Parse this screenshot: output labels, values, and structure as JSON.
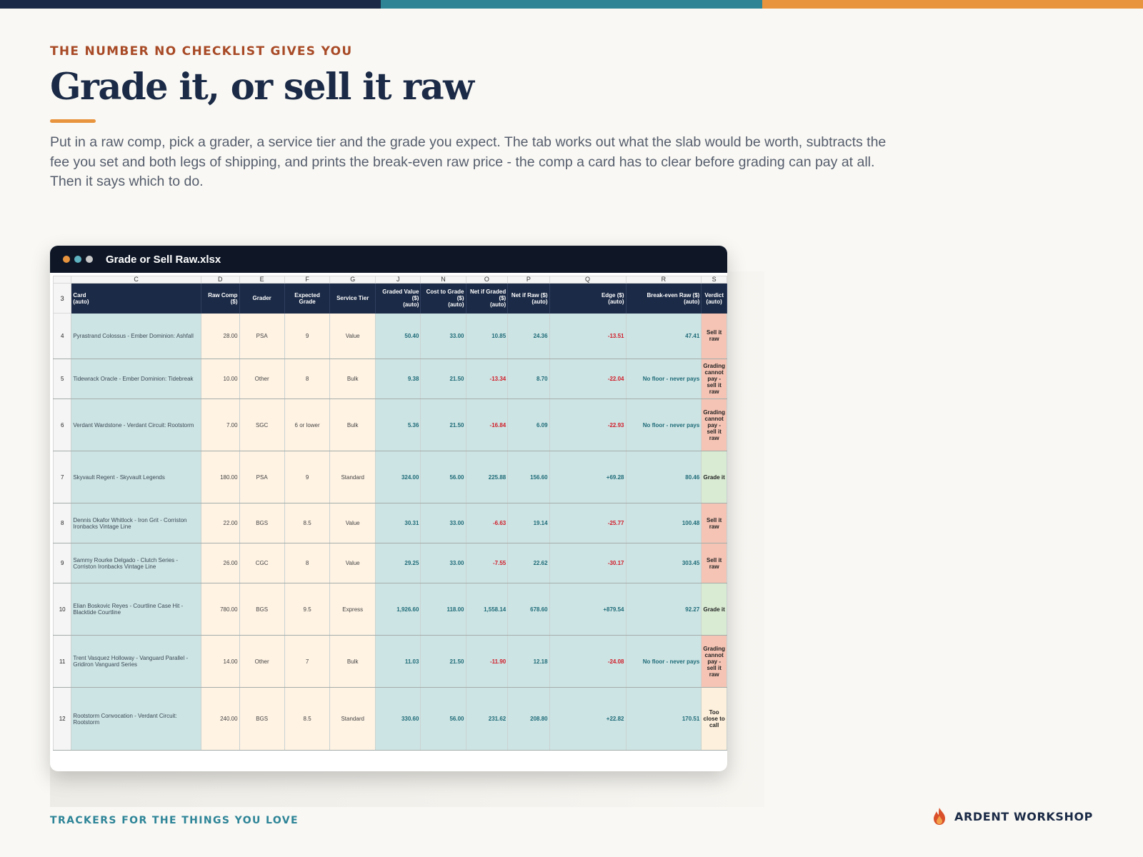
{
  "colors": {
    "bar_navy": "#1b2a46",
    "bar_teal": "#2e8495",
    "bar_orange": "#e8943e",
    "dot_orange": "#e8943e",
    "dot_teal": "#5fb3c1",
    "dot_gray": "#c9c9c9"
  },
  "hero": {
    "eyebrow": "THE NUMBER NO CHECKLIST GIVES YOU",
    "title": "Grade it, or sell it raw",
    "lede": "Put in a raw comp, pick a grader, a service tier and the grade you expect. The tab works out what the slab would be worth, subtracts the fee you set and both legs of shipping, and prints the break-even raw price - the comp a card has to clear before grading can pay at all. Then it says which to do."
  },
  "window": {
    "title": "Grade or Sell Raw.xlsx",
    "icon": "traffic-light-dots"
  },
  "sheet": {
    "column_letters": [
      "C",
      "D",
      "E",
      "F",
      "G",
      "J",
      "N",
      "O",
      "P",
      "Q",
      "R",
      "S"
    ],
    "header_row_number": "3",
    "headers": [
      "Card\n(auto)",
      "Raw Comp ($)",
      "Grader",
      "Expected Grade",
      "Service Tier",
      "Graded Value ($)\n(auto)",
      "Cost to Grade ($)\n(auto)",
      "Net if Graded ($)\n(auto)",
      "Net if Raw ($)\n(auto)",
      "Edge ($)\n(auto)",
      "Break-even Raw ($)\n(auto)",
      "Verdict\n(auto)"
    ],
    "rows": [
      {
        "n": "4",
        "card": "Pyrastrand Colossus  -  Ember Dominion: Ashfall",
        "raw": "28.00",
        "grader": "PSA",
        "grade": "9",
        "tier": "Value",
        "graded": "50.40",
        "cost": "33.00",
        "net_graded": "10.85",
        "net_raw": "24.36",
        "edge": "-13.51",
        "breakeven": "47.41",
        "verdict": "Sell it raw"
      },
      {
        "n": "5",
        "card": "Tidewrack Oracle  -  Ember Dominion: Tidebreak",
        "raw": "10.00",
        "grader": "Other",
        "grade": "8",
        "tier": "Bulk",
        "graded": "9.38",
        "cost": "21.50",
        "net_graded": "-13.34",
        "net_raw": "8.70",
        "edge": "-22.04",
        "breakeven": "No floor - never pays",
        "verdict": "Grading cannot pay - sell it raw"
      },
      {
        "n": "6",
        "card": "Verdant Wardstone  -  Verdant Circuit: Rootstorm",
        "raw": "7.00",
        "grader": "SGC",
        "grade": "6 or lower",
        "tier": "Bulk",
        "graded": "5.36",
        "cost": "21.50",
        "net_graded": "-16.84",
        "net_raw": "6.09",
        "edge": "-22.93",
        "breakeven": "No floor - never pays",
        "verdict": "Grading cannot pay - sell it raw"
      },
      {
        "n": "7",
        "card": "Skyvault Regent  -  Skyvault Legends",
        "raw": "180.00",
        "grader": "PSA",
        "grade": "9",
        "tier": "Standard",
        "graded": "324.00",
        "cost": "56.00",
        "net_graded": "225.88",
        "net_raw": "156.60",
        "edge": "+69.28",
        "breakeven": "80.46",
        "verdict": "Grade it"
      },
      {
        "n": "8",
        "card": "Dennis Okafor Whitlock - Iron Grit  -  Corriston Ironbacks Vintage Line",
        "raw": "22.00",
        "grader": "BGS",
        "grade": "8.5",
        "tier": "Value",
        "graded": "30.31",
        "cost": "33.00",
        "net_graded": "-6.63",
        "net_raw": "19.14",
        "edge": "-25.77",
        "breakeven": "100.48",
        "verdict": "Sell it raw"
      },
      {
        "n": "9",
        "card": "Sammy Rourke Delgado - Clutch Series  -  Corriston Ironbacks Vintage Line",
        "raw": "26.00",
        "grader": "CGC",
        "grade": "8",
        "tier": "Value",
        "graded": "29.25",
        "cost": "33.00",
        "net_graded": "-7.55",
        "net_raw": "22.62",
        "edge": "-30.17",
        "breakeven": "303.45",
        "verdict": "Sell it raw"
      },
      {
        "n": "10",
        "card": "Elian Boskovic Reyes - Courtline Case Hit  -  Blacktide Courtline",
        "raw": "780.00",
        "grader": "BGS",
        "grade": "9.5",
        "tier": "Express",
        "graded": "1,926.60",
        "cost": "118.00",
        "net_graded": "1,558.14",
        "net_raw": "678.60",
        "edge": "+879.54",
        "breakeven": "92.27",
        "verdict": "Grade it"
      },
      {
        "n": "11",
        "card": "Trent Vasquez Holloway - Vanguard Parallel  -  Gridiron Vanguard Series",
        "raw": "14.00",
        "grader": "Other",
        "grade": "7",
        "tier": "Bulk",
        "graded": "11.03",
        "cost": "21.50",
        "net_graded": "-11.90",
        "net_raw": "12.18",
        "edge": "-24.08",
        "breakeven": "No floor - never pays",
        "verdict": "Grading cannot pay - sell it raw"
      },
      {
        "n": "12",
        "card": "Rootstorm Convocation  -  Verdant Circuit: Rootstorm",
        "raw": "240.00",
        "grader": "BGS",
        "grade": "8.5",
        "tier": "Standard",
        "graded": "330.60",
        "cost": "56.00",
        "net_graded": "231.62",
        "net_raw": "208.80",
        "edge": "+22.82",
        "breakeven": "170.51",
        "verdict": "Too close to call"
      }
    ]
  },
  "footer": {
    "tagline": "TRACKERS FOR THE THINGS YOU LOVE",
    "brand": "ARDENT WORKSHOP",
    "brand_icon": "flame-icon"
  }
}
